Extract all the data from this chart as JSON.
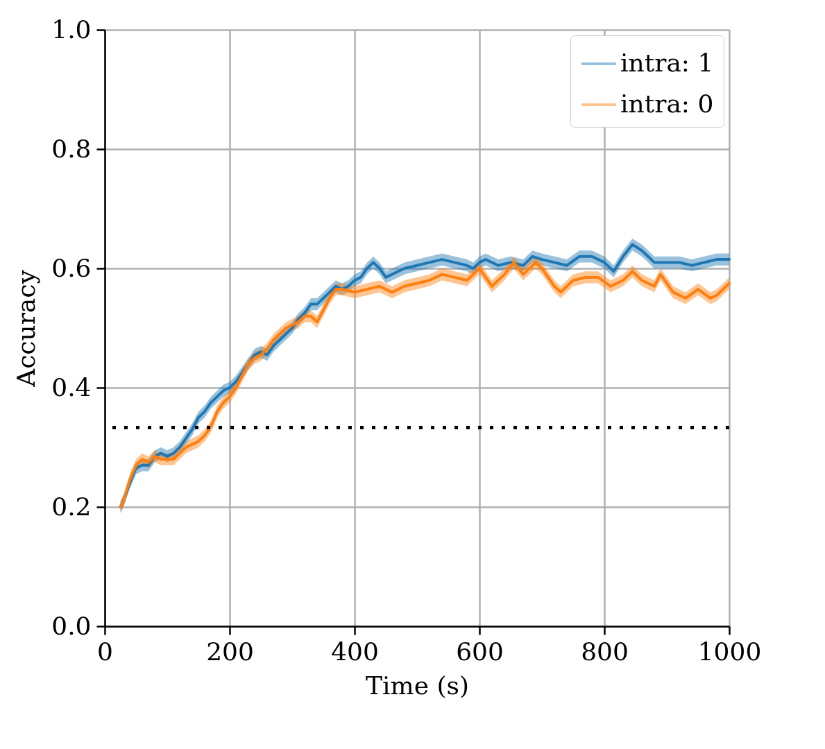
{
  "chart_data": {
    "type": "line",
    "xlabel": "Time (s)",
    "ylabel": "Accuracy",
    "xlim": [
      0,
      1000
    ],
    "xticks": [
      0,
      200,
      400,
      600,
      800,
      1000
    ],
    "ylim": [
      0,
      1.0
    ],
    "yticks": [
      {
        "value": 0,
        "label": "0.0"
      },
      {
        "value": 0.2,
        "label": "0.2"
      },
      {
        "value": 0.4,
        "label": "0.4"
      },
      {
        "value": 0.6,
        "label": "0.6"
      },
      {
        "value": 0.8,
        "label": "0.8"
      },
      {
        "value": 1.0,
        "label": "1.0"
      }
    ],
    "grid": true,
    "legend": "top right",
    "ref_lines": [
      {
        "axis": "y",
        "value": 0.333,
        "color": "#000000",
        "line_style": "dotted"
      }
    ],
    "series": [
      {
        "name": "intra: 1",
        "color": "#1f77b4",
        "x": [
          25,
          30,
          40,
          50,
          60,
          70,
          80,
          90,
          100,
          110,
          120,
          130,
          140,
          150,
          160,
          170,
          180,
          190,
          200,
          210,
          220,
          230,
          240,
          250,
          260,
          270,
          280,
          290,
          300,
          310,
          320,
          330,
          340,
          350,
          360,
          370,
          380,
          390,
          400,
          410,
          420,
          430,
          440,
          450,
          460,
          470,
          480,
          500,
          520,
          540,
          560,
          580,
          590,
          600,
          610,
          630,
          650,
          670,
          685,
          700,
          720,
          740,
          760,
          780,
          800,
          815,
          830,
          845,
          860,
          880,
          900,
          920,
          940,
          960,
          980,
          1000
        ],
        "values": [
          0.2,
          0.21,
          0.24,
          0.265,
          0.27,
          0.27,
          0.285,
          0.29,
          0.285,
          0.29,
          0.3,
          0.315,
          0.33,
          0.35,
          0.36,
          0.375,
          0.385,
          0.395,
          0.4,
          0.41,
          0.425,
          0.44,
          0.455,
          0.46,
          0.455,
          0.47,
          0.48,
          0.49,
          0.5,
          0.515,
          0.525,
          0.54,
          0.54,
          0.55,
          0.56,
          0.57,
          0.565,
          0.57,
          0.58,
          0.585,
          0.6,
          0.61,
          0.6,
          0.585,
          0.59,
          0.595,
          0.6,
          0.605,
          0.61,
          0.615,
          0.61,
          0.605,
          0.6,
          0.61,
          0.615,
          0.605,
          0.61,
          0.605,
          0.62,
          0.615,
          0.61,
          0.605,
          0.62,
          0.62,
          0.61,
          0.595,
          0.62,
          0.64,
          0.63,
          0.61,
          0.61,
          0.61,
          0.605,
          0.61,
          0.615,
          0.615
        ],
        "lower": [
          0.19,
          0.2,
          0.23,
          0.255,
          0.26,
          0.26,
          0.275,
          0.28,
          0.275,
          0.28,
          0.29,
          0.305,
          0.32,
          0.34,
          0.35,
          0.365,
          0.375,
          0.385,
          0.39,
          0.4,
          0.415,
          0.43,
          0.445,
          0.45,
          0.445,
          0.46,
          0.47,
          0.48,
          0.49,
          0.505,
          0.515,
          0.53,
          0.53,
          0.54,
          0.55,
          0.56,
          0.555,
          0.56,
          0.57,
          0.575,
          0.59,
          0.6,
          0.59,
          0.575,
          0.58,
          0.585,
          0.59,
          0.595,
          0.6,
          0.605,
          0.6,
          0.595,
          0.59,
          0.6,
          0.605,
          0.595,
          0.6,
          0.595,
          0.61,
          0.605,
          0.6,
          0.595,
          0.61,
          0.61,
          0.6,
          0.585,
          0.61,
          0.63,
          0.62,
          0.6,
          0.6,
          0.6,
          0.595,
          0.6,
          0.605,
          0.605
        ],
        "upper": [
          0.21,
          0.22,
          0.25,
          0.275,
          0.28,
          0.28,
          0.295,
          0.3,
          0.295,
          0.3,
          0.31,
          0.325,
          0.34,
          0.36,
          0.37,
          0.385,
          0.395,
          0.405,
          0.41,
          0.42,
          0.435,
          0.45,
          0.465,
          0.47,
          0.465,
          0.48,
          0.49,
          0.5,
          0.51,
          0.525,
          0.535,
          0.55,
          0.55,
          0.56,
          0.57,
          0.58,
          0.575,
          0.58,
          0.59,
          0.595,
          0.61,
          0.62,
          0.61,
          0.595,
          0.6,
          0.605,
          0.61,
          0.615,
          0.62,
          0.625,
          0.62,
          0.615,
          0.61,
          0.62,
          0.625,
          0.615,
          0.62,
          0.615,
          0.63,
          0.625,
          0.62,
          0.615,
          0.63,
          0.63,
          0.62,
          0.605,
          0.63,
          0.65,
          0.64,
          0.62,
          0.62,
          0.62,
          0.615,
          0.62,
          0.625,
          0.625
        ]
      },
      {
        "name": "intra: 0",
        "color": "#ff7f0e",
        "x": [
          25,
          30,
          40,
          50,
          60,
          70,
          80,
          90,
          100,
          110,
          120,
          130,
          140,
          150,
          160,
          170,
          180,
          190,
          200,
          210,
          220,
          230,
          240,
          250,
          260,
          270,
          280,
          290,
          300,
          310,
          320,
          330,
          340,
          350,
          360,
          370,
          380,
          400,
          420,
          440,
          460,
          480,
          500,
          520,
          540,
          560,
          580,
          600,
          620,
          640,
          655,
          670,
          690,
          700,
          720,
          730,
          750,
          770,
          790,
          810,
          830,
          845,
          860,
          880,
          890,
          910,
          930,
          950,
          970,
          980,
          1000
        ],
        "values": [
          0.2,
          0.21,
          0.245,
          0.27,
          0.28,
          0.275,
          0.285,
          0.28,
          0.28,
          0.28,
          0.29,
          0.3,
          0.305,
          0.31,
          0.32,
          0.335,
          0.36,
          0.375,
          0.385,
          0.4,
          0.42,
          0.44,
          0.45,
          0.455,
          0.465,
          0.48,
          0.49,
          0.5,
          0.505,
          0.51,
          0.52,
          0.52,
          0.51,
          0.53,
          0.55,
          0.565,
          0.565,
          0.56,
          0.565,
          0.57,
          0.56,
          0.57,
          0.575,
          0.58,
          0.59,
          0.585,
          0.58,
          0.6,
          0.57,
          0.59,
          0.61,
          0.59,
          0.61,
          0.6,
          0.57,
          0.56,
          0.58,
          0.585,
          0.585,
          0.57,
          0.58,
          0.595,
          0.58,
          0.57,
          0.59,
          0.56,
          0.55,
          0.565,
          0.55,
          0.555,
          0.575
        ],
        "lower": [
          0.19,
          0.2,
          0.235,
          0.26,
          0.27,
          0.265,
          0.275,
          0.27,
          0.27,
          0.27,
          0.28,
          0.29,
          0.295,
          0.3,
          0.31,
          0.325,
          0.35,
          0.365,
          0.375,
          0.39,
          0.41,
          0.43,
          0.44,
          0.445,
          0.455,
          0.47,
          0.48,
          0.49,
          0.495,
          0.5,
          0.51,
          0.51,
          0.5,
          0.52,
          0.54,
          0.555,
          0.555,
          0.55,
          0.555,
          0.56,
          0.55,
          0.56,
          0.565,
          0.57,
          0.58,
          0.575,
          0.57,
          0.59,
          0.56,
          0.58,
          0.6,
          0.58,
          0.6,
          0.59,
          0.56,
          0.55,
          0.57,
          0.575,
          0.575,
          0.56,
          0.57,
          0.585,
          0.57,
          0.56,
          0.58,
          0.55,
          0.54,
          0.555,
          0.54,
          0.545,
          0.565
        ],
        "upper": [
          0.21,
          0.22,
          0.255,
          0.28,
          0.29,
          0.285,
          0.295,
          0.29,
          0.29,
          0.29,
          0.3,
          0.31,
          0.315,
          0.32,
          0.33,
          0.345,
          0.37,
          0.385,
          0.395,
          0.41,
          0.43,
          0.45,
          0.46,
          0.465,
          0.475,
          0.49,
          0.5,
          0.51,
          0.515,
          0.52,
          0.53,
          0.53,
          0.52,
          0.54,
          0.56,
          0.575,
          0.575,
          0.57,
          0.575,
          0.58,
          0.57,
          0.58,
          0.585,
          0.59,
          0.6,
          0.595,
          0.59,
          0.61,
          0.58,
          0.6,
          0.62,
          0.6,
          0.62,
          0.61,
          0.58,
          0.57,
          0.59,
          0.595,
          0.595,
          0.58,
          0.59,
          0.605,
          0.59,
          0.58,
          0.6,
          0.57,
          0.56,
          0.575,
          0.56,
          0.565,
          0.585
        ]
      }
    ]
  }
}
